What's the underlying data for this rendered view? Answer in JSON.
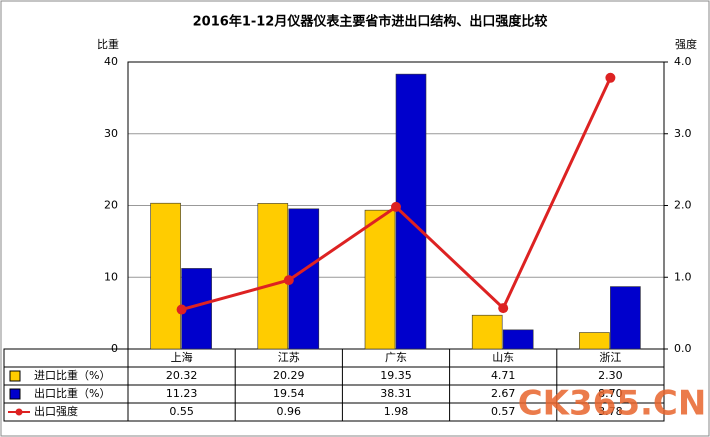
{
  "chart_data": {
    "type": "bar-line-table",
    "title": "2016年1-12月仪器仪表主要省市进出口结构、出口强度比较",
    "y_label": "比重",
    "y2_label": "强度",
    "categories": [
      "上海",
      "江苏",
      "广东",
      "山东",
      "浙江"
    ],
    "ylim": [
      0,
      40
    ],
    "yticks": [
      0,
      10,
      20,
      30,
      40
    ],
    "y2lim": [
      0,
      4
    ],
    "y2ticks": [
      {
        "value": 0,
        "label": "0.0"
      },
      {
        "value": 1,
        "label": "1.0"
      },
      {
        "value": 2,
        "label": "2.0"
      },
      {
        "value": 3,
        "label": "3.0"
      },
      {
        "value": 4,
        "label": "4.0"
      }
    ],
    "grid": true,
    "series": [
      {
        "name": "进口比重（%）",
        "type": "bar",
        "color": "#ffcc00",
        "values": [
          20.32,
          20.29,
          19.35,
          4.71,
          2.3
        ],
        "value_labels": [
          "20.32",
          "20.29",
          "19.35",
          "4.71",
          "2.30"
        ]
      },
      {
        "name": "出口比重（%）",
        "type": "bar",
        "color": "#0000cc",
        "values": [
          11.23,
          19.54,
          38.31,
          2.67,
          8.7
        ],
        "value_labels": [
          "11.23",
          "19.54",
          "38.31",
          "2.67",
          "8.70"
        ]
      },
      {
        "name": "出口强度",
        "type": "line",
        "axis": "y2",
        "color": "#dd2222",
        "values": [
          0.55,
          0.96,
          1.98,
          0.57,
          3.78
        ]
      }
    ]
  },
  "watermark": "CK365.CN"
}
